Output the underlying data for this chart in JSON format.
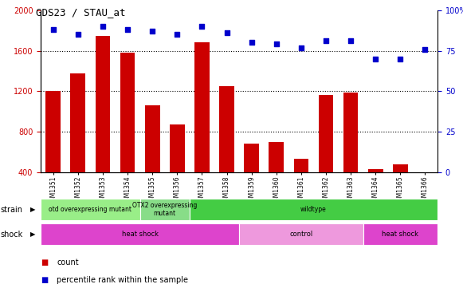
{
  "title": "GDS23 / STAU_at",
  "samples": [
    "GSM1351",
    "GSM1352",
    "GSM1353",
    "GSM1354",
    "GSM1355",
    "GSM1356",
    "GSM1357",
    "GSM1358",
    "GSM1359",
    "GSM1360",
    "GSM1361",
    "GSM1362",
    "GSM1363",
    "GSM1364",
    "GSM1365",
    "GSM1366"
  ],
  "counts": [
    1200,
    1380,
    1750,
    1580,
    1060,
    870,
    1680,
    1250,
    680,
    700,
    530,
    1160,
    1190,
    430,
    480,
    370
  ],
  "percentiles": [
    88,
    85,
    90,
    88,
    87,
    85,
    90,
    86,
    80,
    79,
    77,
    81,
    81,
    70,
    70,
    76
  ],
  "ylim_left": [
    400,
    2000
  ],
  "ylim_right": [
    0,
    100
  ],
  "yticks_left": [
    400,
    800,
    1200,
    1600,
    2000
  ],
  "yticks_right": [
    0,
    25,
    50,
    75,
    100
  ],
  "bar_color": "#cc0000",
  "dot_color": "#0000cc",
  "bg_color": "#d3d3d3",
  "plot_bg": "#ffffff",
  "strain_spans": [
    {
      "start": 0,
      "end": 4,
      "label": "otd overexpressing mutant",
      "color": "#99ee88"
    },
    {
      "start": 4,
      "end": 6,
      "label": "OTX2 overexpressing\nmutant",
      "color": "#88dd88"
    },
    {
      "start": 6,
      "end": 16,
      "label": "wildtype",
      "color": "#44cc44"
    }
  ],
  "shock_spans": [
    {
      "start": 0,
      "end": 8,
      "label": "heat shock",
      "color": "#dd44cc"
    },
    {
      "start": 8,
      "end": 13,
      "label": "control",
      "color": "#ee99dd"
    },
    {
      "start": 13,
      "end": 16,
      "label": "heat shock",
      "color": "#dd44cc"
    }
  ],
  "strain_label": "strain",
  "shock_label": "shock"
}
